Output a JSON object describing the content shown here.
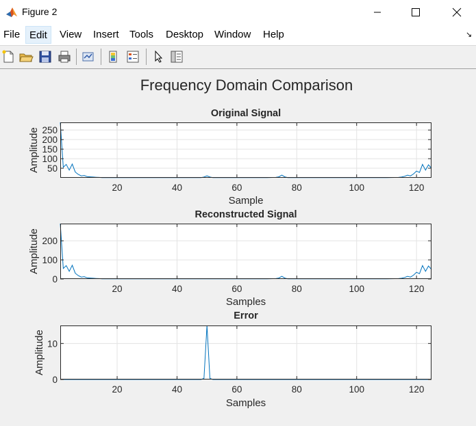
{
  "window": {
    "title": "Figure 2"
  },
  "menu": [
    "File",
    "Edit",
    "View",
    "Insert",
    "Tools",
    "Desktop",
    "Window",
    "Help"
  ],
  "toolbar_icons": [
    "new-figure-icon",
    "open-file-icon",
    "save-icon",
    "print-icon",
    "link-plot-icon",
    "insert-colorbar-icon",
    "insert-legend-icon",
    "edit-plot-pointer-icon",
    "property-inspector-icon"
  ],
  "figure": {
    "title": "Frequency Domain Comparison"
  },
  "chart_data": [
    {
      "type": "line",
      "title": "Original Signal",
      "xlabel": "Sample",
      "ylabel": "Amplitude",
      "xlim": [
        1,
        125
      ],
      "ylim": [
        0,
        290
      ],
      "xticks": [
        20,
        40,
        60,
        80,
        100,
        120
      ],
      "yticks": [
        50,
        100,
        150,
        200,
        250
      ],
      "grid": true,
      "series": [
        {
          "color": "#0072bd",
          "x": [
            1,
            2,
            3,
            4,
            5,
            6,
            7,
            8,
            9,
            10,
            11,
            12,
            13,
            14,
            15,
            20,
            30,
            40,
            48,
            49,
            50,
            51,
            52,
            60,
            70,
            73,
            74,
            75,
            76,
            77,
            85,
            100,
            110,
            114,
            115,
            116,
            117,
            118,
            119,
            120,
            121,
            122,
            123,
            124,
            125
          ],
          "y": [
            290,
            55,
            70,
            40,
            72,
            30,
            18,
            10,
            12,
            6,
            5,
            4,
            3,
            2,
            1,
            1,
            1,
            1,
            1,
            4,
            10,
            4,
            1,
            1,
            1,
            2,
            5,
            14,
            5,
            1,
            1,
            1,
            1,
            2,
            4,
            8,
            14,
            10,
            20,
            35,
            28,
            70,
            40,
            68,
            50
          ]
        }
      ]
    },
    {
      "type": "line",
      "title": "Reconstructed Signal",
      "xlabel": "Samples",
      "ylabel": "Amplitude",
      "xlim": [
        1,
        125
      ],
      "ylim": [
        0,
        290
      ],
      "xticks": [
        20,
        40,
        60,
        80,
        100,
        120
      ],
      "yticks": [
        0,
        100,
        200
      ],
      "grid": true,
      "series": [
        {
          "color": "#0072bd",
          "x": [
            1,
            2,
            3,
            4,
            5,
            6,
            7,
            8,
            9,
            10,
            11,
            12,
            13,
            14,
            15,
            20,
            30,
            40,
            50,
            60,
            70,
            73,
            74,
            75,
            76,
            77,
            85,
            100,
            110,
            114,
            115,
            116,
            117,
            118,
            119,
            120,
            121,
            122,
            123,
            124,
            125
          ],
          "y": [
            290,
            55,
            70,
            40,
            72,
            30,
            18,
            10,
            12,
            6,
            5,
            4,
            3,
            2,
            1,
            1,
            1,
            1,
            1,
            1,
            1,
            2,
            5,
            14,
            5,
            1,
            1,
            1,
            1,
            2,
            4,
            8,
            14,
            10,
            20,
            35,
            28,
            70,
            40,
            68,
            50
          ]
        }
      ]
    },
    {
      "type": "line",
      "title": "Error",
      "xlabel": "Samples",
      "ylabel": "Amplitude",
      "xlim": [
        1,
        125
      ],
      "ylim": [
        0,
        15
      ],
      "xticks": [
        20,
        40,
        60,
        80,
        100,
        120
      ],
      "yticks": [
        0,
        10
      ],
      "grid": true,
      "series": [
        {
          "color": "#0072bd",
          "x": [
            1,
            48,
            49,
            50,
            51,
            52,
            125
          ],
          "y": [
            0,
            0,
            0.3,
            15,
            0.3,
            0,
            0
          ]
        }
      ]
    }
  ]
}
